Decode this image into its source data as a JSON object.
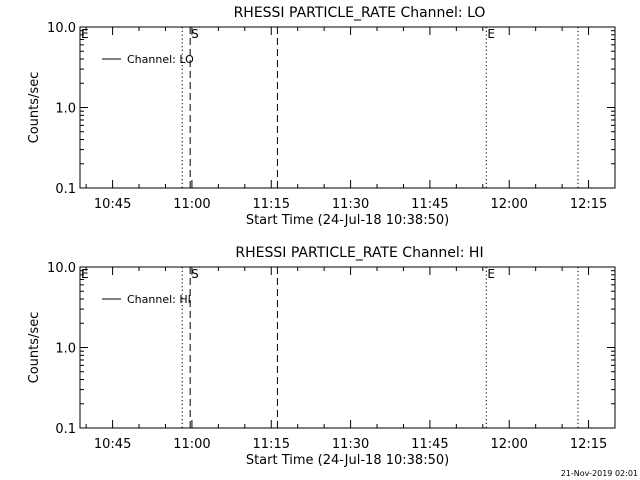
{
  "chart_data": [
    {
      "type": "line",
      "title": "RHESSI PARTICLE_RATE Channel: LO",
      "xlabel": "Start Time (24-Jul-18 10:38:50)",
      "ylabel": "Counts/sec",
      "x_tick_labels": [
        "10:45",
        "11:00",
        "11:15",
        "11:30",
        "11:45",
        "12:00",
        "12:15"
      ],
      "x_ticks": [
        "10:45",
        "11:00",
        "11:15",
        "11:30",
        "11:45",
        "12:00",
        "12:15"
      ],
      "xlim": [
        "10:38:50",
        "12:20:00"
      ],
      "y_scale": "log",
      "ylim": [
        0.1,
        10.0
      ],
      "y_tick_labels": [
        "0.1",
        "1.0",
        "10.0"
      ],
      "y_ticks": [
        0.1,
        1.0,
        10.0
      ],
      "legend": {
        "label": "Channel: LO",
        "position": "top-left"
      },
      "series": [
        {
          "name": "Channel: LO",
          "values": []
        }
      ],
      "annotations": [
        {
          "time": "10:58:10",
          "style": "dotted",
          "letter": ""
        },
        {
          "time": "10:59:40",
          "style": "dashed",
          "letter": "S"
        },
        {
          "time": "11:16:10",
          "style": "dashed",
          "letter": ""
        },
        {
          "time": "11:55:40",
          "style": "dotted",
          "letter": "E"
        },
        {
          "time": "12:13:00",
          "style": "dotted",
          "letter": ""
        }
      ],
      "corner_letter": "E"
    },
    {
      "type": "line",
      "title": "RHESSI PARTICLE_RATE Channel: HI",
      "xlabel": "Start Time (24-Jul-18 10:38:50)",
      "ylabel": "Counts/sec",
      "x_tick_labels": [
        "10:45",
        "11:00",
        "11:15",
        "11:30",
        "11:45",
        "12:00",
        "12:15"
      ],
      "x_ticks": [
        "10:45",
        "11:00",
        "11:15",
        "11:30",
        "11:45",
        "12:00",
        "12:15"
      ],
      "xlim": [
        "10:38:50",
        "12:20:00"
      ],
      "y_scale": "log",
      "ylim": [
        0.1,
        10.0
      ],
      "y_tick_labels": [
        "0.1",
        "1.0",
        "10.0"
      ],
      "y_ticks": [
        0.1,
        1.0,
        10.0
      ],
      "legend": {
        "label": "Channel: HI",
        "position": "top-left"
      },
      "series": [
        {
          "name": "Channel: HI",
          "values": []
        }
      ],
      "annotations": [
        {
          "time": "10:58:10",
          "style": "dotted",
          "letter": ""
        },
        {
          "time": "10:59:40",
          "style": "dashed",
          "letter": "S"
        },
        {
          "time": "11:16:10",
          "style": "dashed",
          "letter": ""
        },
        {
          "time": "11:55:40",
          "style": "dotted",
          "letter": "E"
        },
        {
          "time": "12:13:00",
          "style": "dotted",
          "letter": ""
        }
      ],
      "corner_letter": "E"
    }
  ],
  "footer": {
    "timestamp": "21-Nov-2019 02:01"
  }
}
